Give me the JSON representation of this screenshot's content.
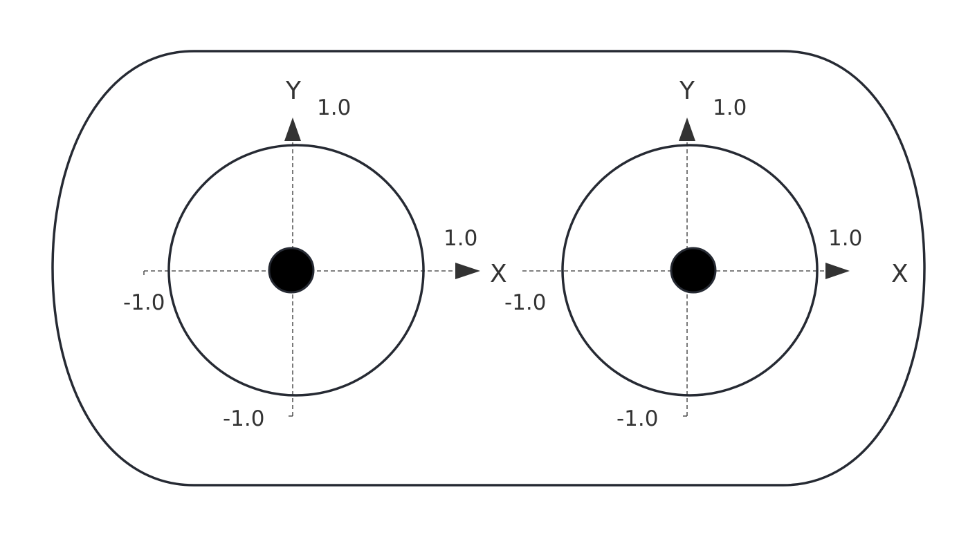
{
  "diagram": {
    "panels": [
      {
        "x_axis_label": "X",
        "y_axis_label": "Y",
        "y_max_label": "1.0",
        "x_max_label": "1.0",
        "x_min_label": "-1.0",
        "y_min_label": "-1.0"
      },
      {
        "x_axis_label": "X",
        "y_axis_label": "Y",
        "y_max_label": "1.0",
        "x_max_label": "1.0",
        "x_min_label": "-1.0",
        "y_min_label": "-1.0"
      }
    ]
  }
}
